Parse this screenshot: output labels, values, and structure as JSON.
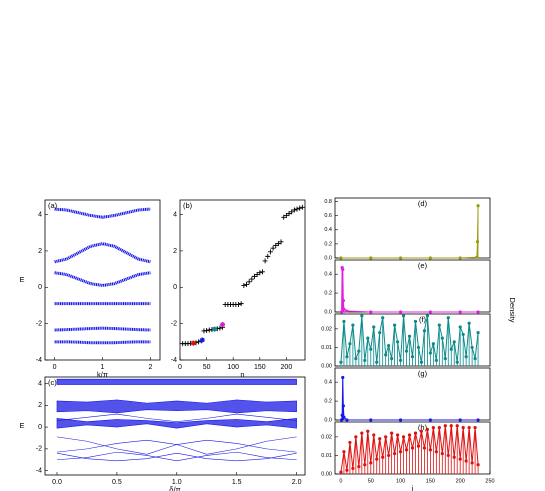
{
  "chart_data": [
    {
      "type": "line",
      "label": "(a)",
      "xlabel": "k/π",
      "ylabel": "E",
      "x": [
        0,
        0.25,
        0.5,
        0.75,
        1,
        1.25,
        1.5,
        1.75,
        2
      ],
      "xlim": [
        -0.2,
        2.2
      ],
      "xticks": [
        0,
        1,
        2
      ],
      "ylim": [
        -4,
        4.8
      ],
      "yticks": [
        -4,
        -2,
        0,
        2,
        4
      ],
      "series": [
        {
          "color": "#1a1ae6",
          "values": [
            4.3,
            4.25,
            4.1,
            3.95,
            3.85,
            3.95,
            4.1,
            4.25,
            4.3
          ]
        },
        {
          "color": "#1a1ae6",
          "values": [
            1.4,
            1.55,
            1.9,
            2.25,
            2.4,
            2.25,
            1.9,
            1.55,
            1.4
          ]
        },
        {
          "color": "#1a1ae6",
          "values": [
            0.8,
            0.7,
            0.45,
            0.2,
            0.1,
            0.2,
            0.45,
            0.7,
            0.8
          ]
        },
        {
          "color": "#1a1ae6",
          "values": [
            -0.9,
            -0.9,
            -0.9,
            -0.9,
            -0.9,
            -0.9,
            -0.9,
            -0.9,
            -0.9
          ]
        },
        {
          "color": "#1a1ae6",
          "values": [
            -2.35,
            -2.33,
            -2.3,
            -2.27,
            -2.25,
            -2.27,
            -2.3,
            -2.33,
            -2.35
          ]
        },
        {
          "color": "#1a1ae6",
          "values": [
            -3.0,
            -3.0,
            -3.02,
            -3.05,
            -3.05,
            -3.05,
            -3.02,
            -3.0,
            -3.0
          ]
        }
      ]
    },
    {
      "type": "scatter",
      "label": "(b)",
      "xlabel": "n",
      "xlim": [
        0,
        235
      ],
      "xticks": [
        0,
        50,
        100,
        150,
        200
      ],
      "ylim": [
        -4,
        4.8
      ],
      "yticks": [
        -4,
        -2,
        0,
        2,
        4
      ],
      "series": [
        {
          "color": "#000000",
          "marker": "+",
          "x": [
            5,
            10,
            15,
            20,
            25,
            30,
            35,
            40,
            45,
            50,
            55,
            60,
            65,
            70,
            75,
            80,
            85,
            90,
            95,
            100,
            105,
            110,
            115,
            120,
            125,
            130,
            135,
            140,
            145,
            150,
            155,
            160,
            165,
            170,
            175,
            180,
            185,
            190,
            195,
            200,
            205,
            210,
            215,
            220,
            225,
            230
          ],
          "values": [
            -3.1,
            -3.1,
            -3.1,
            -3.08,
            -3.07,
            -3.05,
            -3.0,
            -2.95,
            -2.4,
            -2.38,
            -2.35,
            -2.33,
            -2.3,
            -2.28,
            -2.25,
            -2.2,
            -0.95,
            -0.95,
            -0.95,
            -0.95,
            -0.95,
            -0.95,
            -0.9,
            0.1,
            0.15,
            0.3,
            0.45,
            0.6,
            0.7,
            0.8,
            0.85,
            1.45,
            1.7,
            1.95,
            2.15,
            2.3,
            2.4,
            2.5,
            3.85,
            3.95,
            4.05,
            4.15,
            4.25,
            4.3,
            4.35,
            4.4
          ]
        },
        {
          "color": "#e01010",
          "marker": "*",
          "x": [
            25
          ],
          "values": [
            -3.07
          ]
        },
        {
          "color": "#1a1ae6",
          "marker": "*",
          "x": [
            42
          ],
          "values": [
            -2.9
          ]
        },
        {
          "color": "#0a8a8a",
          "marker": "*",
          "x": [
            65
          ],
          "values": [
            -2.3
          ]
        },
        {
          "color": "#d020d0",
          "marker": "*",
          "x": [
            80
          ],
          "values": [
            -2.05
          ]
        }
      ]
    },
    {
      "type": "band",
      "label": "(c)",
      "xlabel": "δ/π",
      "ylabel": "E",
      "x": [
        0,
        0.25,
        0.5,
        0.75,
        1,
        1.25,
        1.5,
        1.75,
        2
      ],
      "xlim": [
        -0.1,
        2.07
      ],
      "xticks": [
        {
          "value": 0,
          "label": "0.0"
        },
        0.5,
        {
          "value": 1,
          "label": "1.0"
        },
        1.5,
        {
          "value": 2,
          "label": "2.0"
        }
      ],
      "ylim": [
        -4.4,
        4.6
      ],
      "yticks": [
        -4,
        -2,
        0,
        2,
        4
      ],
      "color": "#1a1ae6",
      "bands": [
        {
          "lower": [
            3.9,
            3.9,
            3.9,
            3.9,
            3.9,
            3.9,
            3.9,
            3.9,
            3.9
          ],
          "upper": [
            4.4,
            4.4,
            4.4,
            4.4,
            4.4,
            4.4,
            4.4,
            4.4,
            4.4
          ]
        },
        {
          "lower": [
            1.4,
            1.5,
            1.3,
            1.6,
            1.5,
            1.6,
            1.3,
            1.5,
            1.4
          ],
          "upper": [
            2.4,
            2.3,
            2.5,
            2.2,
            2.4,
            2.2,
            2.5,
            2.3,
            2.4
          ]
        },
        {
          "lower": [
            -0.1,
            0.2,
            0.0,
            0.3,
            -0.1,
            0.3,
            0.0,
            0.2,
            -0.1
          ],
          "upper": [
            0.8,
            0.5,
            0.7,
            0.6,
            0.4,
            0.6,
            0.7,
            0.5,
            0.8
          ]
        }
      ],
      "series": [
        {
          "values": [
            -0.9,
            -1.3,
            -2.0,
            -2.5,
            -1.6,
            -2.5,
            -2.0,
            -1.3,
            -0.9
          ]
        },
        {
          "values": [
            -2.3,
            -2.0,
            -1.5,
            -1.2,
            -1.6,
            -1.2,
            -1.5,
            -2.0,
            -2.3
          ]
        },
        {
          "values": [
            -3.0,
            -2.8,
            -2.3,
            -2.6,
            -3.1,
            -2.6,
            -2.3,
            -2.8,
            -3.0
          ]
        },
        {
          "values": [
            -2.4,
            -2.9,
            -3.1,
            -2.9,
            -2.4,
            -2.9,
            -3.1,
            -2.9,
            -2.4
          ]
        },
        {
          "values": [
            0.6,
            0.9,
            1.2,
            0.8,
            0.5,
            0.8,
            1.2,
            0.9,
            0.6
          ]
        }
      ]
    },
    {
      "type": "stem",
      "label": "(d)",
      "color": "#9a9a10",
      "x": [
        0,
        50,
        100,
        150,
        200,
        228,
        229,
        230
      ],
      "values": [
        0,
        0,
        0,
        0,
        0,
        0.01,
        0.23,
        0.74
      ],
      "xlim": [
        -10,
        250
      ],
      "ylim": [
        0,
        0.85
      ],
      "yticks": [
        {
          "value": 0,
          "label": "0.0"
        },
        0.2,
        0.4,
        0.6,
        0.8
      ]
    },
    {
      "type": "stem",
      "label": "(e)",
      "color": "#e020e0",
      "x": [
        1,
        2,
        3,
        4,
        5,
        10,
        50,
        100,
        150,
        200,
        230
      ],
      "values": [
        0,
        0.47,
        0.45,
        0.12,
        0.03,
        0.01,
        0,
        0,
        0,
        0,
        0
      ],
      "xlim": [
        -10,
        250
      ],
      "ylim": [
        0,
        0.55
      ],
      "yticks": [
        {
          "value": 0,
          "label": "0.0"
        },
        0.2,
        0.4
      ]
    },
    {
      "type": "stem",
      "label": "(f)",
      "color": "#0a8a8a",
      "ylabel": "Density",
      "x": [
        0,
        5,
        10,
        15,
        20,
        25,
        30,
        35,
        40,
        45,
        50,
        55,
        60,
        65,
        70,
        75,
        80,
        85,
        90,
        95,
        100,
        105,
        110,
        115,
        120,
        125,
        130,
        135,
        140,
        145,
        150,
        155,
        160,
        165,
        170,
        175,
        180,
        185,
        190,
        195,
        200,
        205,
        210,
        215,
        220,
        225,
        230
      ],
      "values": [
        0.002,
        0.024,
        0.005,
        0.012,
        0.022,
        0.004,
        0.008,
        0.027,
        0.003,
        0.015,
        0.009,
        0.021,
        0.002,
        0.018,
        0.026,
        0.006,
        0.011,
        0.004,
        0.022,
        0.013,
        0.003,
        0.027,
        0.008,
        0.016,
        0.005,
        0.024,
        0.01,
        0.002,
        0.019,
        0.027,
        0.007,
        0.012,
        0.003,
        0.022,
        0.015,
        0.004,
        0.026,
        0.009,
        0.013,
        0.002,
        0.021,
        0.017,
        0.005,
        0.023,
        0.01,
        0.004,
        0.018
      ],
      "xlim": [
        -10,
        250
      ],
      "ylim": [
        0,
        0.028
      ],
      "yticks": [
        {
          "value": 0,
          "label": "0.00"
        },
        0.01,
        0.02
      ]
    },
    {
      "type": "stem",
      "label": "(g)",
      "color": "#1a1ae6",
      "x": [
        1,
        2,
        3,
        4,
        5,
        10,
        50,
        100,
        150,
        200,
        230
      ],
      "values": [
        0,
        0.05,
        0.45,
        0.15,
        0.03,
        0,
        0,
        0,
        0,
        0,
        0
      ],
      "xlim": [
        -10,
        250
      ],
      "ylim": [
        0,
        0.55
      ],
      "yticks": [
        {
          "value": 0,
          "label": "0.0"
        },
        0.2,
        0.4
      ]
    },
    {
      "type": "stem",
      "label": "(h)",
      "color": "#e01010",
      "xlabel": "i",
      "x": [
        0,
        5,
        10,
        15,
        20,
        25,
        30,
        35,
        40,
        45,
        50,
        55,
        60,
        65,
        70,
        75,
        80,
        85,
        90,
        95,
        100,
        105,
        110,
        115,
        120,
        125,
        130,
        135,
        140,
        145,
        150,
        155,
        160,
        165,
        170,
        175,
        180,
        185,
        190,
        195,
        200,
        205,
        210,
        215,
        220,
        225,
        230
      ],
      "values": [
        0.001,
        0.012,
        0.002,
        0.017,
        0.003,
        0.02,
        0.004,
        0.022,
        0.005,
        0.023,
        0.006,
        0.021,
        0.008,
        0.019,
        0.009,
        0.02,
        0.01,
        0.022,
        0.011,
        0.021,
        0.012,
        0.02,
        0.013,
        0.021,
        0.014,
        0.022,
        0.015,
        0.023,
        0.014,
        0.024,
        0.013,
        0.025,
        0.012,
        0.025,
        0.011,
        0.026,
        0.01,
        0.026,
        0.009,
        0.026,
        0.008,
        0.025,
        0.007,
        0.025,
        0.006,
        0.025,
        0.005
      ],
      "xlim": [
        -10,
        250
      ],
      "xticks": [
        0,
        50,
        100,
        150,
        200,
        250
      ],
      "ylim": [
        0,
        0.028
      ],
      "yticks": [
        {
          "value": 0,
          "label": "0.00"
        },
        0.01,
        0.02
      ]
    }
  ]
}
